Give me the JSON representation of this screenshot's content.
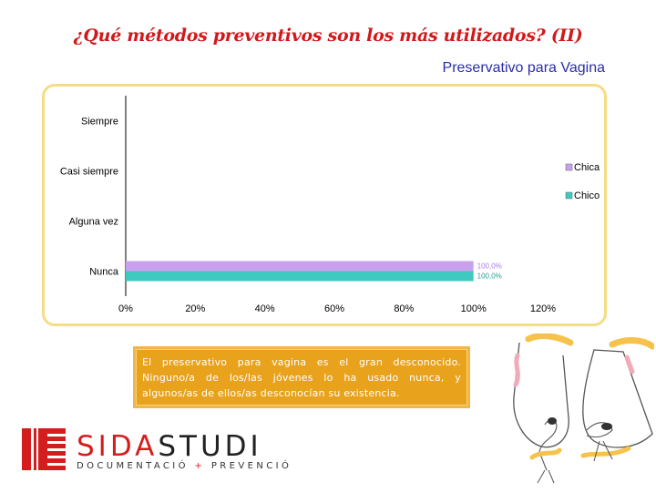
{
  "slide": {
    "title": "¿Qué métodos preventivos son los más utilizados? (II)",
    "chart_subtitle": "Preservativo para Vagina",
    "note": "El preservativo para vagina es el gran desconocido. Ninguno/a de los/las jóvenes lo ha usado nunca, y algunos/as de ellos/as desconocían su existencia."
  },
  "logo": {
    "brand_red": "SIDA",
    "brand_dark": "STUDI",
    "tagline_left": "DOCUMENTACIÓ",
    "tagline_plus": "+",
    "tagline_right": "PREVENCIÓ"
  },
  "colors": {
    "title": "#d0191b",
    "subtitle": "#2b2ea8",
    "chica": "#c9a0ee",
    "chico": "#3fc9c0",
    "note_bg": "#e8a21c",
    "frame": "#f5dc86"
  },
  "chart_data": {
    "type": "bar",
    "orientation": "horizontal",
    "categories": [
      "Siempre",
      "Casi siempre",
      "Alguna vez",
      "Nunca"
    ],
    "series": [
      {
        "name": "Chica",
        "values": [
          0,
          0,
          0,
          100.0
        ],
        "color": "#c9a0ee"
      },
      {
        "name": "Chico",
        "values": [
          0,
          0,
          0,
          100.0
        ],
        "color": "#3fc9c0"
      }
    ],
    "data_labels": {
      "Nunca": [
        "100,0%",
        "100,0%"
      ]
    },
    "xlim": [
      0,
      120
    ],
    "x_ticks": [
      "0%",
      "20%",
      "40%",
      "60%",
      "80%",
      "100%",
      "120%"
    ],
    "grid": false,
    "legend_position": "right"
  }
}
